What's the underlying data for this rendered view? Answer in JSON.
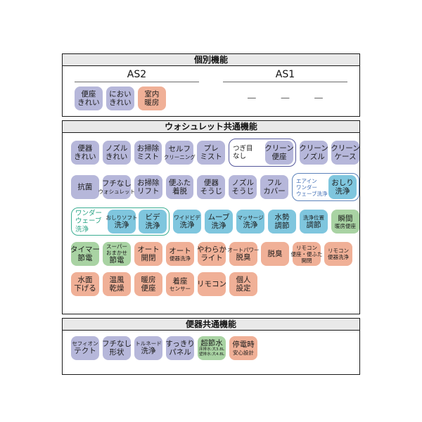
{
  "colors": {
    "lavender": "#b6b7da",
    "cyan": "#7fc6de",
    "green": "#a9d3a3",
    "salmon": "#f0b097",
    "header_bg": "#e9e9e9",
    "group_navy": "#55589c",
    "group_blue": "#5c82ba",
    "group_teal": "#3cae93",
    "label_blue": "#3f6db5",
    "label_teal": "#27a383"
  },
  "sections": {
    "individual": {
      "title": "個別機能",
      "columns": [
        {
          "label": "AS2",
          "badges": [
            {
              "type": "badge",
              "color": "lavender",
              "lines": [
                "便座",
                "きれい"
              ]
            },
            {
              "type": "badge",
              "color": "lavender",
              "lines": [
                "におい",
                "きれい"
              ]
            },
            {
              "type": "badge",
              "color": "salmon",
              "lines": [
                "室内",
                "暖房"
              ]
            }
          ]
        },
        {
          "label": "AS1",
          "dashes": [
            "—",
            "—",
            "—"
          ]
        }
      ]
    },
    "washlet": {
      "title": "ウォシュレット共通機能",
      "rows": [
        [
          {
            "type": "badge",
            "color": "lavender",
            "lines": [
              "便器",
              "きれい"
            ]
          },
          {
            "type": "badge",
            "color": "lavender",
            "lines": [
              "ノズル",
              "きれい"
            ]
          },
          {
            "type": "badge",
            "color": "lavender",
            "lines": [
              "お掃除",
              "ミスト"
            ]
          },
          {
            "type": "badge",
            "color": "lavender",
            "lines": [
              "セルフ",
              {
                "t": "クリーニング",
                "s": "small"
              }
            ]
          },
          {
            "type": "badge",
            "color": "lavender",
            "lines": [
              "プレ",
              "ミスト"
            ]
          },
          {
            "type": "group",
            "border": "navy",
            "labelColor": "dark",
            "labelLines": [
              "つぎ目",
              "なし"
            ],
            "badges": [
              {
                "color": "lavender",
                "lines": [
                  "クリーン",
                  "便座"
                ]
              }
            ]
          },
          {
            "type": "badge",
            "color": "lavender",
            "lines": [
              "クリーン",
              "ノズル"
            ]
          },
          {
            "type": "badge",
            "color": "lavender",
            "lines": [
              "クリーン",
              "ケース"
            ]
          }
        ],
        [
          {
            "type": "badge",
            "color": "lavender",
            "lines": [
              "抗菌"
            ]
          },
          {
            "type": "badge",
            "color": "lavender",
            "lines": [
              "フチなし",
              {
                "t": "ウォシュレット",
                "s": "small"
              }
            ]
          },
          {
            "type": "badge",
            "color": "lavender",
            "lines": [
              "お掃除",
              "リフト"
            ]
          },
          {
            "type": "badge",
            "color": "lavender",
            "lines": [
              "便ふた",
              "着脱"
            ]
          },
          {
            "type": "badge",
            "color": "lavender",
            "lines": [
              "便器",
              "そうじ"
            ]
          },
          {
            "type": "badge",
            "color": "lavender",
            "lines": [
              "ノズル",
              "そうじ"
            ]
          },
          {
            "type": "badge",
            "color": "lavender",
            "lines": [
              "フル",
              "カバー"
            ]
          },
          {
            "type": "group",
            "border": "blue",
            "labelColor": "blue",
            "labelLines": [
              {
                "t": "エアイン",
                "s": "small"
              },
              {
                "t": "ワンダー",
                "s": "small"
              },
              {
                "t": "ウェーブ洗浄",
                "s": "small"
              }
            ],
            "badges": [
              {
                "color": "cyan",
                "lines": [
                  "おしり",
                  "洗浄"
                ]
              }
            ]
          }
        ],
        [
          {
            "type": "group",
            "border": "teal",
            "labelColor": "teal",
            "labelLines": [
              "ワンダー",
              "ウェーブ",
              "洗浄"
            ],
            "badges": [
              {
                "color": "cyan",
                "lines": [
                  {
                    "t": "おしりソフト",
                    "s": "small"
                  },
                  "洗浄"
                ]
              },
              {
                "color": "cyan",
                "lines": [
                  "ビデ",
                  "洗浄"
                ]
              }
            ]
          },
          {
            "type": "badge",
            "color": "cyan",
            "lines": [
              {
                "t": "ワイドビデ",
                "s": "small"
              },
              "洗浄"
            ]
          },
          {
            "type": "badge",
            "color": "cyan",
            "lines": [
              "ムーブ",
              "洗浄"
            ]
          },
          {
            "type": "badge",
            "color": "cyan",
            "lines": [
              {
                "t": "マッサージ",
                "s": "small"
              },
              "洗浄"
            ]
          },
          {
            "type": "badge",
            "color": "cyan",
            "lines": [
              "水勢",
              "調節"
            ]
          },
          {
            "type": "badge",
            "color": "cyan",
            "lines": [
              {
                "t": "洗浄位置",
                "s": "small"
              },
              "調節"
            ]
          },
          {
            "type": "badge",
            "color": "green",
            "lines": [
              "瞬間",
              {
                "t": "暖房便座",
                "s": "small"
              }
            ]
          }
        ],
        [
          {
            "type": "badge",
            "color": "green",
            "lines": [
              "タイマー",
              "節電"
            ]
          },
          {
            "type": "badge",
            "color": "green",
            "lines": [
              {
                "t": "スーパー",
                "s": "small"
              },
              {
                "t": "おまかせ",
                "s": "small"
              },
              "節電"
            ]
          },
          {
            "type": "badge",
            "color": "salmon",
            "lines": [
              "オート",
              "開閉"
            ]
          },
          {
            "type": "badge",
            "color": "salmon",
            "lines": [
              "オート",
              {
                "t": "便器洗浄",
                "s": "small"
              }
            ]
          },
          {
            "type": "badge",
            "color": "salmon",
            "lines": [
              "やわらか",
              "ライト"
            ]
          },
          {
            "type": "badge",
            "color": "salmon",
            "lines": [
              {
                "t": "オートパワー",
                "s": "small"
              },
              "脱臭"
            ]
          },
          {
            "type": "badge",
            "color": "salmon",
            "lines": [
              "脱臭"
            ]
          },
          {
            "type": "badge",
            "color": "salmon",
            "lines": [
              {
                "t": "リモコン",
                "s": "small"
              },
              {
                "t": "便座・便ふた",
                "s": "small"
              },
              {
                "t": "開閉",
                "s": "small"
              }
            ]
          },
          {
            "type": "badge",
            "color": "salmon",
            "lines": [
              {
                "t": "リモコン",
                "s": "small"
              },
              {
                "t": "便器洗浄",
                "s": "small"
              }
            ]
          }
        ],
        [
          {
            "type": "badge",
            "color": "salmon",
            "lines": [
              "水面",
              "下げる"
            ]
          },
          {
            "type": "badge",
            "color": "salmon",
            "lines": [
              "温風",
              "乾燥"
            ]
          },
          {
            "type": "badge",
            "color": "salmon",
            "lines": [
              "暖房",
              "便座"
            ]
          },
          {
            "type": "badge",
            "color": "salmon",
            "lines": [
              "着座",
              {
                "t": "センサー",
                "s": "small"
              }
            ]
          },
          {
            "type": "badge",
            "color": "salmon",
            "lines": [
              "リモコン"
            ]
          },
          {
            "type": "badge",
            "color": "salmon",
            "lines": [
              "個人",
              "設定"
            ]
          }
        ]
      ]
    },
    "toilet": {
      "title": "便器共通機能",
      "rows": [
        [
          {
            "type": "badge",
            "color": "lavender",
            "lines": [
              {
                "t": "セフィオン",
                "s": "small"
              },
              "テクト"
            ]
          },
          {
            "type": "badge",
            "color": "lavender",
            "lines": [
              "フチなし",
              "形状"
            ]
          },
          {
            "type": "badge",
            "color": "lavender",
            "lines": [
              {
                "t": "トルネード",
                "s": "small"
              },
              "洗浄"
            ]
          },
          {
            "type": "badge",
            "color": "lavender",
            "lines": [
              "すっきり",
              "パネル"
            ]
          },
          {
            "type": "badge",
            "color": "green",
            "lines": [
              "超節水",
              {
                "t": "床排水:大3.8L",
                "s": "tiny"
              },
              {
                "t": "壁排水:大4.8L",
                "s": "tiny"
              }
            ]
          },
          {
            "type": "badge",
            "color": "salmon",
            "lines": [
              "停電時",
              {
                "t": "安心設計",
                "s": "small"
              }
            ]
          }
        ]
      ]
    }
  }
}
